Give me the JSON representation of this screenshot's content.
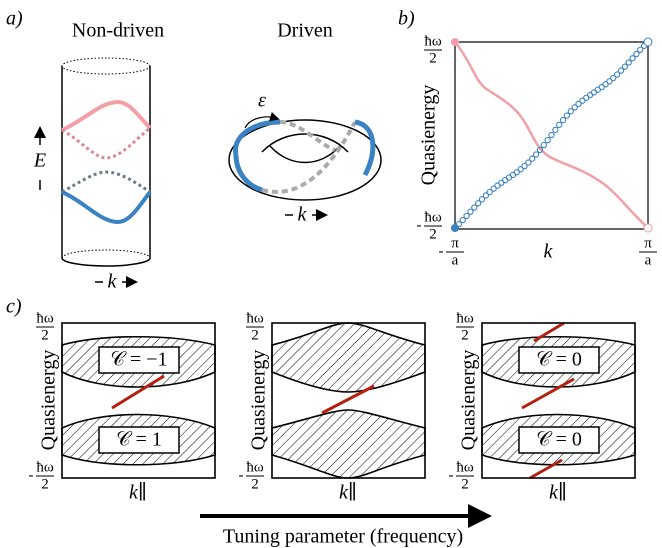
{
  "panel_a": {
    "label": "a)",
    "non_driven_title": "Non-driven",
    "driven_title": "Driven",
    "energy_label": "E",
    "momentum_label": "k",
    "driven_momentum_label": "k",
    "winding_label": "ε"
  },
  "panel_b": {
    "label": "b)",
    "y_label": "Quasienergy",
    "y_top": {
      "numerator": "ħω",
      "denominator": "2"
    },
    "y_bottom": {
      "sign": "-",
      "numerator": "ħω",
      "denominator": "2"
    },
    "x_left": {
      "sign": "-",
      "numerator": "π",
      "denominator": "a"
    },
    "x_right": {
      "numerator": "π",
      "denominator": "a"
    },
    "x_label": "k"
  },
  "panel_c": {
    "label": "c)",
    "subpanels": [
      {
        "y_label": "Quasienergy",
        "y_top": {
          "numerator": "ħω",
          "denominator": "2"
        },
        "y_bottom": {
          "sign": "-",
          "numerator": "ħω",
          "denominator": "2"
        },
        "x_label": "k∥",
        "chern_upper": "𝒞 = −1",
        "chern_lower": "𝒞 = 1"
      },
      {
        "y_label": "Quasienergy",
        "y_top": {
          "numerator": "ħω",
          "denominator": "2"
        },
        "y_bottom": {
          "sign": "-",
          "numerator": "ħω",
          "denominator": "2"
        },
        "x_label": "k∥"
      },
      {
        "y_label": "Quasienergy",
        "y_top": {
          "numerator": "ħω",
          "denominator": "2"
        },
        "y_bottom": {
          "sign": "-",
          "numerator": "ħω",
          "denominator": "2"
        },
        "x_label": "k∥",
        "chern_upper": "𝒞 = 0",
        "chern_lower": "𝒞 = 0"
      }
    ]
  },
  "tuning_label": "Tuning parameter (frequency)"
}
